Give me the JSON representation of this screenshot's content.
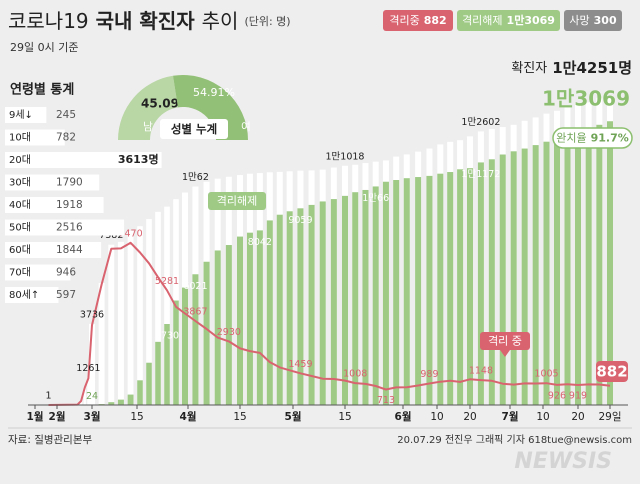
{
  "header": {
    "title": {
      "prefix": "코로나19",
      "main": "국내 확진자",
      "suffix": "추이"
    },
    "unit": "(단위: 명)",
    "as_of": "29일 0시 기준",
    "summary": [
      {
        "name": "격리중",
        "value": 882
      },
      {
        "name": "격리해제",
        "value": 13069,
        "value_label": "1만3069"
      },
      {
        "name": "사망",
        "value": 300
      }
    ],
    "recovery_rate": {
      "label": "완치율",
      "value": 91.7,
      "value_label": "91.7%"
    }
  },
  "age_stats": {
    "title": "연령별 통계",
    "categories": [
      "9세↓",
      "10대",
      "20대",
      "30대",
      "40대",
      "50대",
      "60대",
      "70대",
      "80세↑"
    ],
    "values": [
      245,
      782,
      3613,
      1790,
      1918,
      2516,
      1844,
      946,
      597
    ],
    "value_labels": [
      null,
      null,
      "3613명",
      null,
      null,
      null,
      null,
      null,
      null
    ],
    "xlim": [
      0,
      3800
    ]
  },
  "gender_stats": {
    "title": "성별 누계",
    "categories": [
      "남",
      "여"
    ],
    "values": [
      45.09,
      54.91
    ],
    "value_labels": [
      null,
      "54.91%"
    ],
    "colors": [
      "#b9d6a5",
      "#93c077"
    ]
  },
  "chart_data": {
    "type": "bar",
    "x": [
      20,
      49,
      52,
      55,
      58,
      61,
      64,
      67,
      70,
      73,
      76,
      79,
      82,
      85,
      88,
      91,
      94,
      97,
      100,
      103,
      106,
      109,
      112,
      115,
      118,
      121,
      124,
      127,
      130,
      133,
      136,
      139,
      142,
      145,
      148,
      151,
      154,
      157,
      160,
      163,
      166,
      169,
      172,
      175,
      178,
      181,
      184,
      187,
      190,
      193,
      196,
      199,
      202,
      205,
      208,
      211
    ],
    "xticks": [
      {
        "value": 1,
        "label": "1월"
      },
      {
        "value": 32,
        "label": "2월"
      },
      {
        "value": 61,
        "label": "3월"
      },
      {
        "value": 75,
        "label": "15"
      },
      {
        "value": 92,
        "label": "4월"
      },
      {
        "value": 106,
        "label": "15"
      },
      {
        "value": 122,
        "label": "5월"
      },
      {
        "value": 136,
        "label": "15"
      },
      {
        "value": 153,
        "label": "6월"
      },
      {
        "value": 162,
        "label": "10"
      },
      {
        "value": 172,
        "label": "20"
      },
      {
        "value": 183,
        "label": "7월"
      },
      {
        "value": 192,
        "label": "10"
      },
      {
        "value": 202,
        "label": "20"
      },
      {
        "value": 211,
        "label": "29일"
      }
    ],
    "ylim": [
      0,
      14600
    ],
    "series": [
      {
        "name": "확진자",
        "color": "#ffffff",
        "values": [
          1,
          31,
          204,
          833,
          1261,
          3736,
          5621,
          7382,
          7513,
          8020,
          8236,
          8565,
          8897,
          9137,
          9478,
          9786,
          10062,
          10284,
          10423,
          10512,
          10591,
          10653,
          10683,
          10718,
          10738,
          10765,
          10793,
          10806,
          10840,
          10936,
          11018,
          11065,
          11142,
          11206,
          11265,
          11441,
          11541,
          11668,
          11814,
          12003,
          12121,
          12198,
          12373,
          12602,
          12715,
          12800,
          12904,
          13091,
          13244,
          13417,
          13551,
          13711,
          13816,
          13938,
          14150,
          14251
        ],
        "value_labels": [
          "1",
          null,
          null,
          null,
          "1261",
          "3736",
          null,
          "7382",
          null,
          null,
          null,
          null,
          null,
          null,
          null,
          null,
          "1만62",
          null,
          null,
          null,
          null,
          null,
          null,
          null,
          null,
          null,
          null,
          null,
          null,
          null,
          "1만1018",
          null,
          null,
          null,
          null,
          null,
          null,
          null,
          null,
          null,
          null,
          null,
          null,
          "1만2602",
          null,
          null,
          null,
          null,
          null,
          null,
          null,
          null,
          null,
          null,
          null,
          "1만4251명"
        ]
      },
      {
        "name": "격리해제",
        "color": "#9fca86",
        "values": [
          0,
          12,
          16,
          18,
          22,
          24,
          41,
          130,
          247,
          480,
          1137,
          1947,
          2909,
          3730,
          4811,
          5408,
          6021,
          6598,
          7117,
          7368,
          7757,
          7937,
          8042,
          8501,
          8764,
          8922,
          9059,
          9216,
          9375,
          9484,
          9632,
          9801,
          9904,
          10066,
          10283,
          10363,
          10446,
          10499,
          10552,
          10654,
          10730,
          10856,
          10908,
          11172,
          11317,
          11537,
          11684,
          11811,
          11970,
          12127,
          12331,
          12457,
          12604,
          12693,
          12905,
          13069
        ],
        "value_labels": [
          null,
          null,
          null,
          null,
          null,
          "24",
          null,
          null,
          null,
          null,
          null,
          null,
          null,
          "3730",
          null,
          null,
          "6021",
          null,
          null,
          null,
          null,
          null,
          "8042",
          null,
          null,
          null,
          "9059",
          null,
          null,
          null,
          null,
          null,
          null,
          "1만66",
          null,
          null,
          null,
          null,
          null,
          null,
          null,
          null,
          null,
          "1만1172",
          null,
          null,
          null,
          null,
          null,
          null,
          null,
          null,
          null,
          null,
          null,
          "1만3069"
        ]
      },
      {
        "name": "격리 중",
        "color": "#d9636f",
        "type": "line",
        "values": [
          1,
          19,
          186,
          807,
          1230,
          3680,
          5552,
          7200,
          7212,
          7470,
          7024,
          6527,
          5884,
          5281,
          4523,
          4216,
          3867,
          3500,
          3102,
          2930,
          2609,
          2484,
          2398,
          1977,
          1731,
          1596,
          1459,
          1336,
          1209,
          1196,
          1126,
          1008,
          974,
          873,
          713,
          809,
          822,
          896,
          989,
          1072,
          1115,
          1062,
          1185,
          1148,
          1116,
          981,
          938,
          997,
          989,
          1005,
          926,
          957,
          919,
          948,
          946,
          882
        ],
        "value_labels": [
          null,
          null,
          null,
          null,
          null,
          null,
          null,
          null,
          null,
          "7470",
          null,
          null,
          null,
          "5281",
          null,
          null,
          "3867",
          null,
          null,
          "2930",
          null,
          null,
          null,
          null,
          null,
          null,
          "1459",
          null,
          null,
          null,
          null,
          "1008",
          null,
          null,
          "713",
          null,
          null,
          null,
          "989",
          null,
          null,
          null,
          null,
          "1148",
          null,
          null,
          null,
          null,
          null,
          "1005",
          "926",
          null,
          "919",
          null,
          null,
          "882"
        ]
      }
    ]
  },
  "footer": {
    "source": "자료: 질병관리본부",
    "credit": "20.07.29 전진우 그래픽 기자 618tue@newsis.com",
    "watermark": "NEWSIS"
  }
}
